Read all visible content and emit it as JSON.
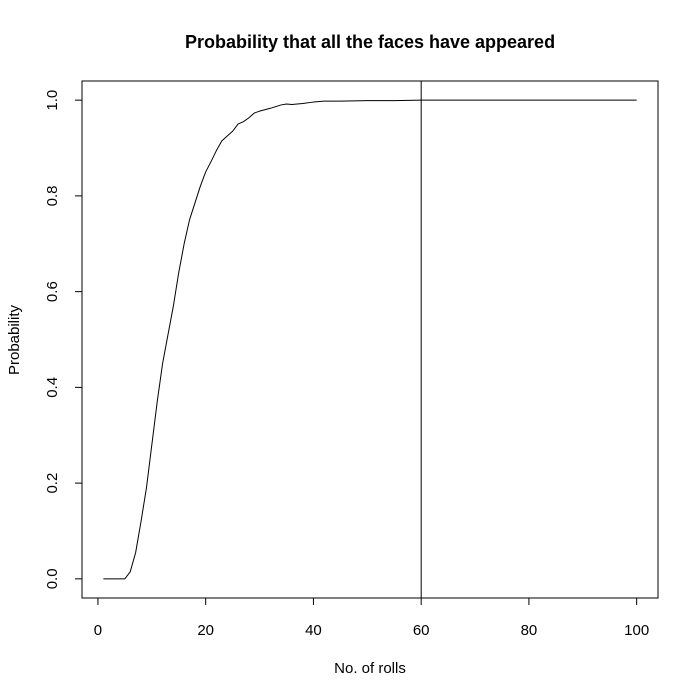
{
  "chart_data": {
    "type": "line",
    "title": "Probability that all the faces have appeared",
    "xlabel": "No. of rolls",
    "ylabel": "Probability",
    "xlim": [
      1,
      100
    ],
    "ylim": [
      0,
      1
    ],
    "x_ticks": [
      0,
      20,
      40,
      60,
      80,
      100
    ],
    "x_tick_labels": [
      "0",
      "20",
      "40",
      "60",
      "80",
      "100"
    ],
    "y_ticks": [
      0,
      0.2,
      0.4,
      0.6,
      0.8,
      1
    ],
    "y_tick_labels": [
      "0.0",
      "0.2",
      "0.4",
      "0.6",
      "0.8",
      "1.0"
    ],
    "grid": false,
    "vline_x": 60,
    "series": [
      {
        "x": [
          1,
          2,
          3,
          4,
          5,
          6,
          7,
          8,
          9,
          10,
          11,
          12,
          13,
          14,
          15,
          16,
          17,
          18,
          19,
          20,
          21,
          22,
          23,
          24,
          25,
          26,
          27,
          28,
          29,
          30,
          32,
          34,
          35,
          36,
          38,
          40,
          42,
          45,
          50,
          55,
          60,
          100
        ],
        "y": [
          0,
          0,
          0,
          0,
          0,
          0.015,
          0.055,
          0.12,
          0.19,
          0.28,
          0.37,
          0.45,
          0.51,
          0.57,
          0.64,
          0.7,
          0.75,
          0.785,
          0.82,
          0.85,
          0.872,
          0.895,
          0.915,
          0.925,
          0.935,
          0.95,
          0.955,
          0.963,
          0.973,
          0.977,
          0.983,
          0.99,
          0.992,
          0.991,
          0.993,
          0.996,
          0.998,
          0.998,
          0.999,
          0.999,
          1.0,
          1.0
        ]
      }
    ]
  }
}
